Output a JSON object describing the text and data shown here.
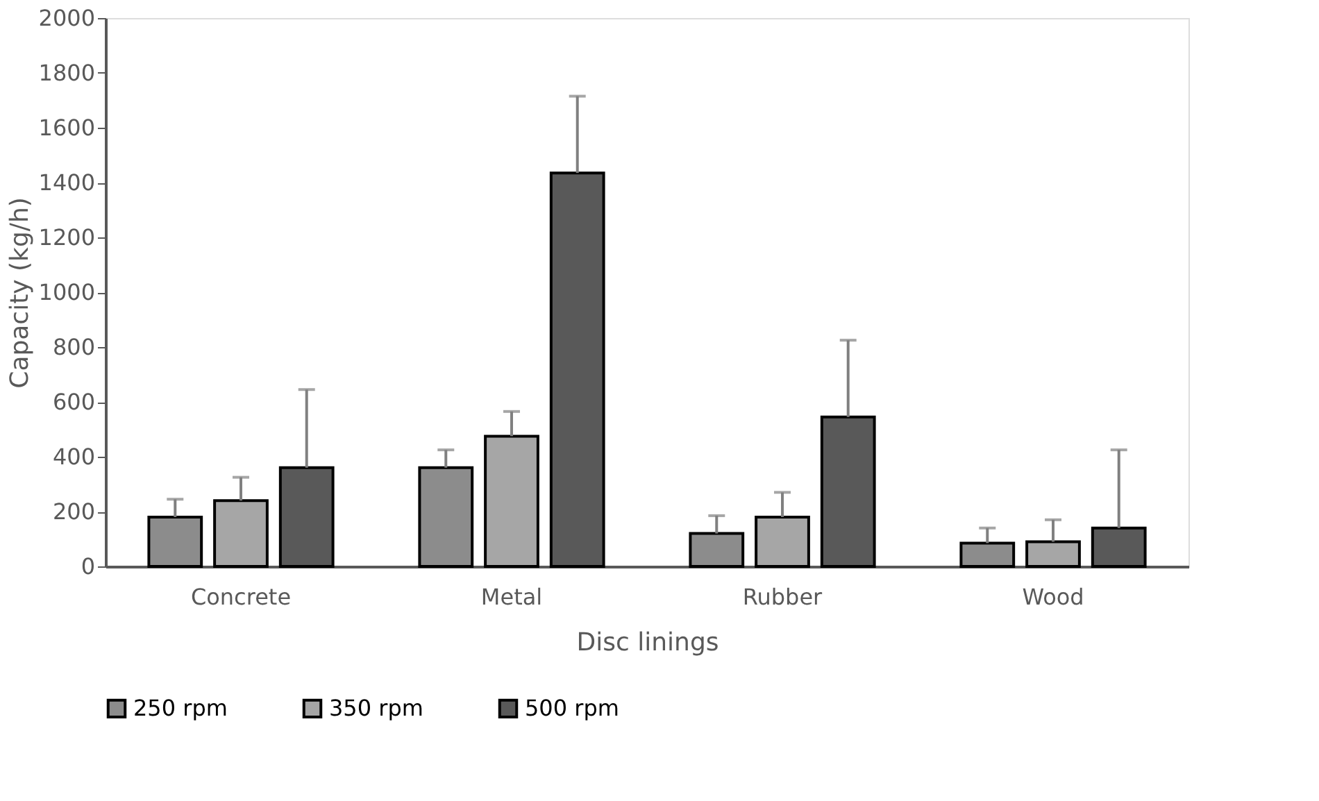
{
  "chart_data": {
    "type": "bar",
    "xlabel": "Disc linings",
    "ylabel": "Capacity (kg/h)",
    "categories": [
      "Concrete",
      "Metal",
      "Rubber",
      "Wood"
    ],
    "series": [
      {
        "name": "250 rpm",
        "color": "#8c8c8c",
        "values": [
          180,
          360,
          120,
          85
        ],
        "errors": [
          [
            180,
            245
          ],
          [
            360,
            425
          ],
          [
            120,
            185
          ],
          [
            85,
            140
          ]
        ]
      },
      {
        "name": "350 rpm",
        "color": "#a6a6a6",
        "values": [
          240,
          475,
          180,
          90
        ],
        "errors": [
          [
            240,
            325
          ],
          [
            475,
            565
          ],
          [
            180,
            270
          ],
          [
            90,
            170
          ]
        ]
      },
      {
        "name": "500 rpm",
        "color": "#595959",
        "values": [
          360,
          1435,
          545,
          140
        ],
        "errors": [
          [
            360,
            645
          ],
          [
            1435,
            1715
          ],
          [
            545,
            825
          ],
          [
            140,
            425
          ]
        ]
      }
    ],
    "ylim": [
      0,
      2000
    ],
    "yticks": [
      0,
      200,
      400,
      600,
      800,
      1000,
      1200,
      1400,
      1600,
      1800,
      2000
    ],
    "grid": false,
    "legend": "bottom"
  }
}
